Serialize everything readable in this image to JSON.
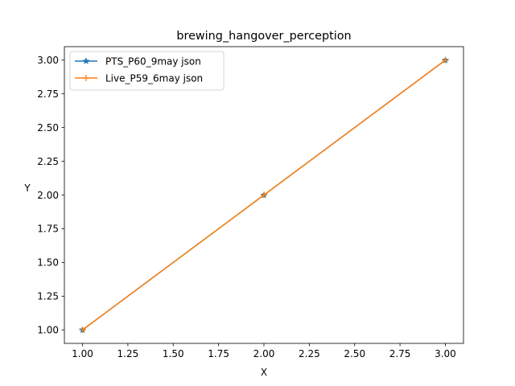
{
  "chart_data": {
    "type": "line",
    "title": "brewing_hangover_perception",
    "xlabel": "X",
    "ylabel": "Y",
    "xlim": [
      0.9,
      3.1
    ],
    "ylim": [
      0.9,
      3.1
    ],
    "xticks": [
      1.0,
      1.25,
      1.5,
      1.75,
      2.0,
      2.25,
      2.5,
      2.75,
      3.0
    ],
    "yticks": [
      1.0,
      1.25,
      1.5,
      1.75,
      2.0,
      2.25,
      2.5,
      2.75,
      3.0
    ],
    "xtick_labels": [
      "1.00",
      "1.25",
      "1.50",
      "1.75",
      "2.00",
      "2.25",
      "2.50",
      "2.75",
      "3.00"
    ],
    "ytick_labels": [
      "1.00",
      "1.25",
      "1.50",
      "1.75",
      "2.00",
      "2.25",
      "2.50",
      "2.75",
      "3.00"
    ],
    "grid": false,
    "legend_position": "top-left",
    "series": [
      {
        "name": "PTS_P60_9may json",
        "x": [
          1,
          2,
          3
        ],
        "y": [
          1,
          2,
          3
        ],
        "color": "#1f77b4",
        "marker": "star"
      },
      {
        "name": "Live_P59_6may json",
        "x": [
          1,
          2,
          3
        ],
        "y": [
          1,
          2,
          3
        ],
        "color": "#ff7f0e",
        "marker": "plus"
      }
    ]
  }
}
